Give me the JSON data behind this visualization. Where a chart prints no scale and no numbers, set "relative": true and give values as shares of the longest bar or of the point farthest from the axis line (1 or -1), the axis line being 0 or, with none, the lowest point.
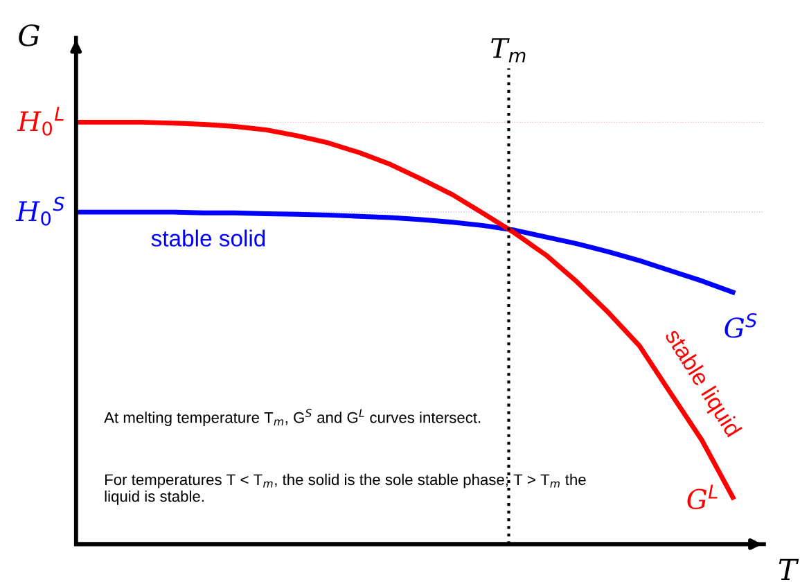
{
  "chart_data": {
    "type": "line",
    "relative": true,
    "ylabel": "G",
    "xlabel": "T",
    "categories": [
      null,
      null,
      null,
      null,
      null,
      null,
      null,
      null,
      null,
      null,
      null,
      null,
      null,
      null,
      null,
      null,
      null,
      null,
      null,
      null,
      null,
      null
    ],
    "series": [
      {
        "name": "G$^{S}$",
        "color": "#0000ff",
        "values": [
          0.787,
          0.787,
          0.787,
          0.787,
          0.785,
          0.785,
          0.783,
          0.782,
          0.78,
          0.777,
          0.774,
          0.769,
          0.763,
          0.755,
          0.744,
          0.728,
          0.712,
          0.693,
          0.672,
          0.648,
          0.624,
          0.597
        ]
      },
      {
        "name": "G$^{L}$",
        "color": "#ff0000",
        "values": [
          1,
          1,
          1,
          0.998,
          0.995,
          0.99,
          0.982,
          0.968,
          0.951,
          0.928,
          0.9,
          0.865,
          0.828,
          0.783,
          0.737,
          0.685,
          0.621,
          0.549,
          0.47,
          0.358,
          0.247,
          0.111
        ]
      }
    ],
    "ref_lines": [
      {
        "axis": "y",
        "value": 1,
        "label": "H$_{0}$$^{L}$",
        "color": "#ff0000",
        "line_style": "dotted"
      },
      {
        "axis": "y",
        "value": 0.787,
        "label": "H$_{0}$$^{S}$",
        "color": "#0000ff",
        "line_style": "dotted"
      }
    ],
    "annotations": [
      "T$_{m}$",
      "stable solid",
      "stable liquid",
      "At melting temperature T$_{m}$, G$^{S}$ and G$^{L}$ curves intersect.",
      "For temperatures T < T$_{m}$, the solid is the sole stable phase; T > T$_{m}$ the liquid is stable."
    ],
    "grid": false,
    "legend": false,
    "marker": "none",
    "line_style": "solid"
  }
}
